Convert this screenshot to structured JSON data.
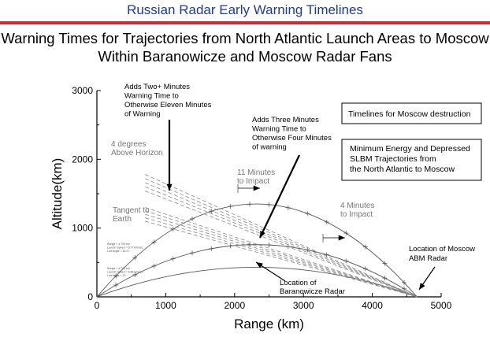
{
  "header": {
    "title": "Russian Radar Early Warning Timelines"
  },
  "chart_data": {
    "type": "line",
    "title": "Warning Times for Trajectories from North Atlantic Launch Areas to Moscow Within Baranowicze and Moscow Radar Fans",
    "xlabel": "Range (km)",
    "ylabel": "Altitude(km)",
    "xlim": [
      0,
      5000
    ],
    "ylim": [
      0,
      3000
    ],
    "xticks": [
      0,
      1000,
      2000,
      3000,
      4000,
      5000
    ],
    "yticks": [
      0,
      1000,
      2000,
      3000
    ],
    "grid": false,
    "trajectories": [
      {
        "apogee_range": 2300,
        "apogee_alt": 1350,
        "range": 4650
      },
      {
        "apogee_range": 2300,
        "apogee_alt": 760,
        "range": 4650
      },
      {
        "apogee_range": 2300,
        "apogee_alt": 430,
        "range": 4650
      }
    ],
    "radar_origin": [
      4650,
      0
    ],
    "annotations": {
      "adds_two": [
        "Adds Two+ Minutes",
        "Warning Time to",
        "Otherwise Eleven Minutes",
        "of Warning"
      ],
      "adds_three": [
        "Adds Three Minutes",
        "Warning Time to",
        "Otherwise Four Minutes",
        "of warning"
      ],
      "four_deg": [
        "4 degrees",
        "Above Horizon"
      ],
      "tangent": [
        "Tangent to",
        "Earth"
      ],
      "eleven_min": [
        "11 Minutes",
        "to Impact"
      ],
      "four_min": [
        "4 Minutes",
        "to Impact"
      ],
      "moscow_radar": [
        "Location of Moscow",
        "ABM Radar"
      ],
      "baran_radar": [
        "Location of",
        "Baranowicze Radar"
      ],
      "box1": "Timelines for Moscow destruction",
      "box2": [
        "Minimum Energy and Depressed",
        "SLBM Trajectories from",
        "the North Atlantic to Moscow"
      ],
      "small_label_1": [
        "Range = 4,700 km",
        "Launch Speed = 6.77 km/sec",
        "Loft Angle = 34.27"
      ],
      "small_label_2": [
        "Range = 4,700 km",
        "Launch Speed = 6.58 km/sec",
        "Loft Angle = 13"
      ]
    }
  }
}
